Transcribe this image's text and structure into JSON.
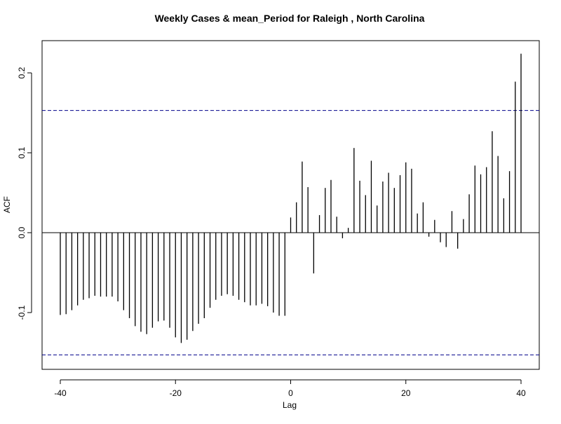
{
  "chart_data": {
    "type": "bar",
    "title": "Weekly Cases & mean_Period for Raleigh , North Carolina",
    "xlabel": "Lag",
    "ylabel": "ACF",
    "xlim": [
      -40,
      40
    ],
    "ylim": [
      -0.155,
      0.225
    ],
    "x_ticks": [
      -40,
      -20,
      0,
      20,
      40
    ],
    "x_tick_labels": [
      "-40",
      "-20",
      "0",
      "20",
      "40"
    ],
    "y_ticks": [
      -0.1,
      0.0,
      0.1,
      0.2
    ],
    "y_tick_labels": [
      "-0.1",
      "0.0",
      "0.1",
      "0.2"
    ],
    "confidence_band": 0.153,
    "grid": false,
    "colors": {
      "bars": "#000000",
      "confidence": "#00008b",
      "zero_line": "#000000"
    },
    "x": [
      -40,
      -39,
      -38,
      -37,
      -36,
      -35,
      -34,
      -33,
      -32,
      -31,
      -30,
      -29,
      -28,
      -27,
      -26,
      -25,
      -24,
      -23,
      -22,
      -21,
      -20,
      -19,
      -18,
      -17,
      -16,
      -15,
      -14,
      -13,
      -12,
      -11,
      -10,
      -9,
      -8,
      -7,
      -6,
      -5,
      -4,
      -3,
      -2,
      -1,
      0,
      1,
      2,
      3,
      4,
      5,
      6,
      7,
      8,
      9,
      10,
      11,
      12,
      13,
      14,
      15,
      16,
      17,
      18,
      19,
      20,
      21,
      22,
      23,
      24,
      25,
      26,
      27,
      28,
      29,
      30,
      31,
      32,
      33,
      34,
      35,
      36,
      37,
      38,
      39,
      40
    ],
    "values": [
      -0.103,
      -0.102,
      -0.097,
      -0.091,
      -0.084,
      -0.082,
      -0.079,
      -0.08,
      -0.08,
      -0.08,
      -0.086,
      -0.097,
      -0.107,
      -0.117,
      -0.124,
      -0.127,
      -0.119,
      -0.111,
      -0.11,
      -0.119,
      -0.131,
      -0.138,
      -0.134,
      -0.123,
      -0.114,
      -0.107,
      -0.094,
      -0.084,
      -0.079,
      -0.077,
      -0.079,
      -0.084,
      -0.087,
      -0.091,
      -0.091,
      -0.089,
      -0.092,
      -0.1,
      -0.104,
      -0.104,
      0.019,
      0.038,
      0.089,
      0.057,
      -0.051,
      0.022,
      0.056,
      0.066,
      0.02,
      -0.007,
      0.006,
      0.106,
      0.065,
      0.047,
      0.09,
      0.034,
      0.064,
      0.075,
      0.056,
      0.072,
      0.088,
      0.08,
      0.024,
      0.038,
      -0.005,
      0.016,
      -0.012,
      -0.018,
      0.027,
      -0.02,
      0.017,
      0.048,
      0.084,
      0.073,
      0.082,
      0.127,
      0.096,
      0.043,
      0.077,
      0.189,
      0.224
    ]
  }
}
